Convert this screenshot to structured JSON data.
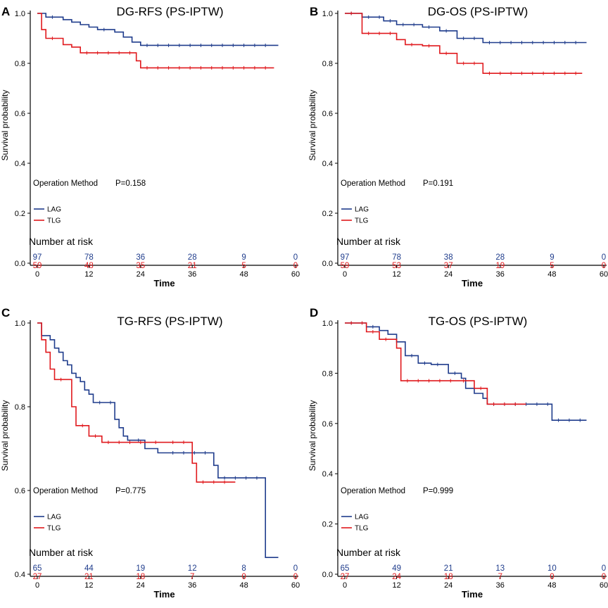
{
  "colors": {
    "LAG": "#1f3c8c",
    "TLG": "#e0191d"
  },
  "chart_data": [
    {
      "type": "line",
      "subtype": "kaplan-meier",
      "panel": "A",
      "title": "DG-RFS (PS-IPTW)",
      "xlabel": "Time",
      "ylabel": "Survival probability",
      "xticks": [
        "0",
        "12",
        "24",
        "36",
        "48",
        "60"
      ],
      "yticks": [
        "0.0",
        "0.2",
        "0.4",
        "0.6",
        "0.8",
        "1.0"
      ],
      "xlim": [
        0,
        60
      ],
      "ylim": [
        0,
        1
      ],
      "legend_title": "Operation Method",
      "p_value": "P=0.158",
      "series": [
        {
          "name": "LAG",
          "x": [
            0,
            2,
            6,
            8,
            10,
            12,
            14,
            18,
            20,
            22,
            24,
            56
          ],
          "y": [
            1.0,
            0.985,
            0.975,
            0.965,
            0.955,
            0.945,
            0.935,
            0.925,
            0.905,
            0.885,
            0.872,
            0.872
          ]
        },
        {
          "name": "TLG",
          "x": [
            0,
            1,
            2,
            6,
            8,
            10,
            23,
            24,
            55
          ],
          "y": [
            1.0,
            0.935,
            0.9,
            0.875,
            0.865,
            0.842,
            0.81,
            0.782,
            0.782
          ]
        }
      ],
      "risk_table": {
        "title": "Number at risk",
        "LAG": [
          "97",
          "78",
          "36",
          "28",
          "9",
          "0"
        ],
        "TLG": [
          "59",
          "48",
          "35",
          "21",
          "5",
          "0"
        ]
      }
    },
    {
      "type": "line",
      "subtype": "kaplan-meier",
      "panel": "B",
      "title": "DG-OS (PS-IPTW)",
      "xlabel": "Time",
      "ylabel": "Survival probability",
      "xticks": [
        "0",
        "12",
        "24",
        "36",
        "48",
        "60"
      ],
      "yticks": [
        "0.0",
        "0.2",
        "0.4",
        "0.6",
        "0.8",
        "1.0"
      ],
      "xlim": [
        0,
        60
      ],
      "ylim": [
        0,
        1
      ],
      "legend_title": "Operation Method",
      "p_value": "P=0.191",
      "series": [
        {
          "name": "LAG",
          "x": [
            0,
            4,
            9,
            12,
            18,
            22,
            26,
            32,
            56
          ],
          "y": [
            1.0,
            0.985,
            0.97,
            0.955,
            0.945,
            0.93,
            0.9,
            0.883,
            0.883
          ]
        },
        {
          "name": "TLG",
          "x": [
            0,
            4,
            12,
            14,
            18,
            22,
            26,
            32,
            55
          ],
          "y": [
            1.0,
            0.92,
            0.895,
            0.875,
            0.87,
            0.84,
            0.8,
            0.76,
            0.76
          ]
        }
      ],
      "risk_table": {
        "title": "Number at risk",
        "LAG": [
          "97",
          "78",
          "38",
          "28",
          "9",
          "0"
        ],
        "TLG": [
          "59",
          "53",
          "37",
          "19",
          "5",
          "0"
        ]
      }
    },
    {
      "type": "line",
      "subtype": "kaplan-meier",
      "panel": "C",
      "title": "TG-RFS (PS-IPTW)",
      "xlabel": "Time",
      "ylabel": "Survival probability",
      "xticks": [
        "0",
        "12",
        "24",
        "36",
        "48",
        "60"
      ],
      "yticks": [
        "0.4",
        "0.6",
        "0.8",
        "1.0"
      ],
      "xlim": [
        0,
        60
      ],
      "ylim": [
        0.4,
        1
      ],
      "legend_title": "Operation Method",
      "p_value": "P=0.775",
      "series": [
        {
          "name": "LAG",
          "x": [
            0,
            1,
            3,
            4,
            5,
            6,
            7,
            8,
            9,
            10,
            11,
            12,
            13,
            18,
            19,
            20,
            21,
            22,
            25,
            27,
            28,
            30,
            41,
            42,
            53,
            54,
            56
          ],
          "y": [
            1.0,
            0.97,
            0.96,
            0.94,
            0.93,
            0.91,
            0.9,
            0.88,
            0.87,
            0.86,
            0.84,
            0.83,
            0.81,
            0.77,
            0.75,
            0.73,
            0.72,
            0.72,
            0.7,
            0.7,
            0.69,
            0.69,
            0.66,
            0.63,
            0.44,
            0.44,
            0.44
          ]
        },
        {
          "name": "TLG",
          "x": [
            0,
            1,
            2,
            3,
            4,
            8,
            9,
            12,
            15,
            20,
            26,
            30,
            35,
            36,
            37,
            46
          ],
          "y": [
            1.0,
            0.96,
            0.93,
            0.89,
            0.865,
            0.8,
            0.755,
            0.73,
            0.715,
            0.715,
            0.715,
            0.715,
            0.715,
            0.665,
            0.62,
            0.62
          ]
        }
      ],
      "risk_table": {
        "title": "Number at risk",
        "LAG": [
          "65",
          "44",
          "19",
          "12",
          "8",
          "0"
        ],
        "TLG": [
          "27",
          "21",
          "18",
          "7",
          "0",
          "0"
        ]
      }
    },
    {
      "type": "line",
      "subtype": "kaplan-meier",
      "panel": "D",
      "title": "TG-OS (PS-IPTW)",
      "xlabel": "Time",
      "ylabel": "Survival probability",
      "xticks": [
        "0",
        "12",
        "24",
        "36",
        "48",
        "60"
      ],
      "yticks": [
        "0.0",
        "0.2",
        "0.4",
        "0.6",
        "0.8",
        "1.0"
      ],
      "xlim": [
        0,
        60
      ],
      "ylim": [
        0,
        1
      ],
      "legend_title": "Operation Method",
      "p_value": "P=0.999",
      "series": [
        {
          "name": "LAG",
          "x": [
            0,
            5,
            8,
            10,
            12,
            14,
            17,
            20,
            24,
            27,
            28,
            30,
            32,
            33,
            48,
            56
          ],
          "y": [
            1.0,
            0.985,
            0.97,
            0.955,
            0.925,
            0.87,
            0.84,
            0.835,
            0.8,
            0.78,
            0.74,
            0.72,
            0.7,
            0.677,
            0.613,
            0.613
          ]
        },
        {
          "name": "TLG",
          "x": [
            0,
            5,
            8,
            12,
            13,
            26,
            30,
            33,
            42
          ],
          "y": [
            1.0,
            0.965,
            0.935,
            0.9,
            0.77,
            0.77,
            0.74,
            0.677,
            0.677
          ]
        }
      ],
      "risk_table": {
        "title": "Number at risk",
        "LAG": [
          "65",
          "49",
          "21",
          "13",
          "10",
          "0"
        ],
        "TLG": [
          "27",
          "24",
          "18",
          "7",
          "0",
          "0"
        ]
      }
    }
  ]
}
